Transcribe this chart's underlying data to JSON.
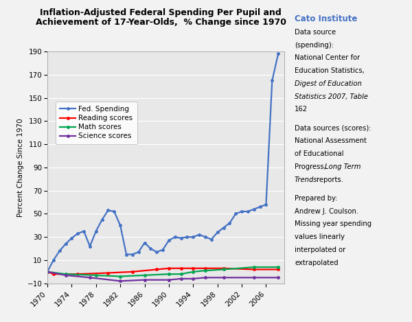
{
  "title_line1": "Inflation-Adjusted Federal Spending Per Pupil and",
  "title_line2": "Achievement of 17-Year-Olds,  % Change since 1970",
  "ylabel": "Percent Change Since 1970",
  "xlim": [
    1970,
    2009
  ],
  "ylim": [
    -10,
    190
  ],
  "yticks": [
    -10,
    10,
    30,
    50,
    70,
    90,
    110,
    130,
    150,
    170,
    190
  ],
  "xticks": [
    1970,
    1974,
    1978,
    1982,
    1986,
    1990,
    1994,
    1998,
    2002,
    2006
  ],
  "fed_spending_x": [
    1970,
    1971,
    1972,
    1973,
    1974,
    1975,
    1976,
    1977,
    1978,
    1979,
    1980,
    1981,
    1982,
    1983,
    1984,
    1985,
    1986,
    1987,
    1988,
    1989,
    1990,
    1991,
    1992,
    1993,
    1994,
    1995,
    1996,
    1997,
    1998,
    1999,
    2000,
    2001,
    2002,
    2003,
    2004,
    2005,
    2006,
    2007,
    2008
  ],
  "fed_spending_y": [
    0,
    10,
    18,
    24,
    29,
    33,
    35,
    22,
    35,
    45,
    53,
    52,
    40,
    15,
    15,
    17,
    25,
    20,
    17,
    19,
    27,
    30,
    29,
    30,
    30,
    32,
    30,
    28,
    34,
    38,
    42,
    50,
    52,
    52,
    54,
    56,
    58,
    165,
    188
  ],
  "fed_spending_color": "#4472C4",
  "fed_spending_label": "Fed. Spending",
  "reading_x": [
    1970,
    1971,
    1975,
    1980,
    1984,
    1988,
    1990,
    1992,
    1994,
    1996,
    1999,
    2004,
    2008
  ],
  "reading_y": [
    0,
    -2,
    -2,
    -1,
    0,
    2,
    3,
    3,
    3,
    3,
    3,
    2,
    2
  ],
  "reading_color": "#FF0000",
  "reading_label": "Reading scores",
  "math_x": [
    1970,
    1973,
    1978,
    1982,
    1986,
    1990,
    1992,
    1994,
    1996,
    1999,
    2004,
    2008
  ],
  "math_y": [
    0,
    -2,
    -3,
    -4,
    -3,
    -2,
    -2,
    0,
    1,
    2,
    4,
    4
  ],
  "math_color": "#00A550",
  "math_label": "Math scores",
  "science_x": [
    1970,
    1973,
    1977,
    1982,
    1986,
    1990,
    1992,
    1994,
    1996,
    1999,
    2004,
    2008
  ],
  "science_y": [
    0,
    -3,
    -5,
    -8,
    -7,
    -7,
    -6,
    -6,
    -5,
    -5,
    -5,
    -5
  ],
  "science_color": "#7030A0",
  "science_label": "Science scores",
  "fig_bg": "#F2F2F2",
  "plot_bg": "#E8E8E8",
  "cato_color": "#4472C4",
  "grid_color": "white",
  "spine_color": "#AAAAAA"
}
